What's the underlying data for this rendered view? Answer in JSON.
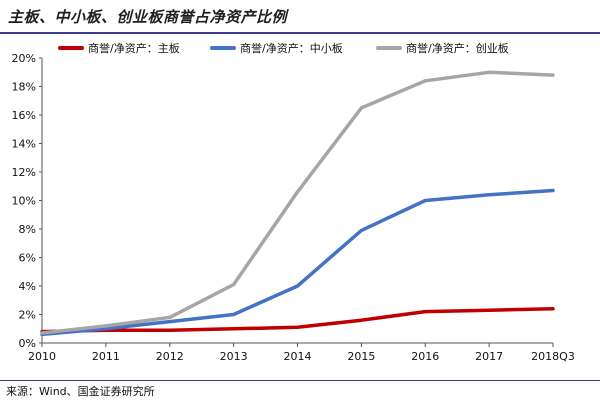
{
  "header": {
    "title": "主板、中小板、创业板商誉占净资产比例"
  },
  "footer": {
    "source": "来源：Wind、国金证券研究所"
  },
  "chart_data": {
    "type": "line",
    "title": "主板、中小板、创业板商誉占净资产比例",
    "xlabel": "",
    "ylabel": "",
    "categories": [
      "2010",
      "2011",
      "2012",
      "2013",
      "2014",
      "2015",
      "2016",
      "2017",
      "2018Q3"
    ],
    "y_ticks": [
      "0%",
      "2%",
      "4%",
      "6%",
      "8%",
      "10%",
      "12%",
      "14%",
      "16%",
      "18%",
      "20%"
    ],
    "ylim": [
      0,
      20
    ],
    "grid": false,
    "legend_position": "top",
    "series": [
      {
        "name": "商誉/净资产：主板",
        "color": "#c00000",
        "values": [
          0.8,
          0.9,
          0.9,
          1.0,
          1.1,
          1.6,
          2.2,
          2.3,
          2.4
        ]
      },
      {
        "name": "商誉/净资产：中小板",
        "color": "#4472c4",
        "values": [
          0.6,
          1.0,
          1.5,
          2.0,
          4.0,
          7.9,
          10.0,
          10.4,
          10.7
        ]
      },
      {
        "name": "商誉/净资产：创业板",
        "color": "#a6a6a6",
        "values": [
          0.7,
          1.2,
          1.8,
          4.1,
          10.6,
          16.5,
          18.4,
          19.0,
          18.8
        ]
      }
    ]
  }
}
